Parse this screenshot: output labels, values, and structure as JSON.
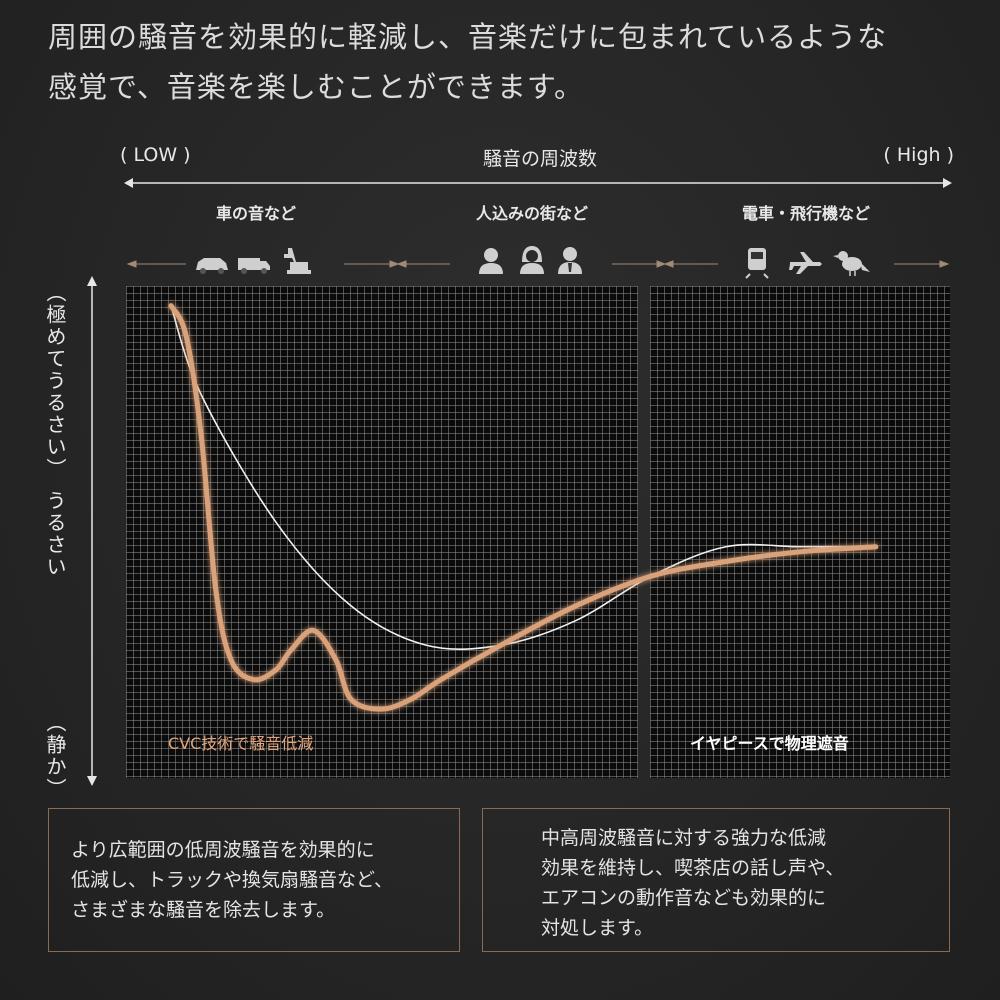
{
  "headline": {
    "line1": "周囲の騒音を効果的に軽減し、音楽だけに包まれているような",
    "line2": "感覚で、音楽を楽しむことができます。"
  },
  "x_axis": {
    "low": "( LOW )",
    "title": "騒音の周波数",
    "high": "( High )"
  },
  "categories": [
    {
      "label": "車の音など",
      "icons": [
        "car-icon",
        "truck-icon",
        "excavator-icon"
      ]
    },
    {
      "label": "人込みの街など",
      "icons": [
        "man-icon",
        "woman-icon",
        "businessman-icon"
      ]
    },
    {
      "label": "電車・飛行機など",
      "icons": [
        "train-icon",
        "airplane-icon",
        "bird-icon"
      ]
    }
  ],
  "y_axis": {
    "very_loud": "（極めてうるさい）",
    "loud": "うるさい",
    "quiet": "（静か）"
  },
  "chart_data": {
    "type": "line",
    "x_label": "騒音の周波数",
    "x_range_labels": [
      "( LOW )",
      "( High )"
    ],
    "y_labels": [
      "（極めてうるさい）",
      "うるさい",
      "（静か）"
    ],
    "x_range": [
      0,
      100
    ],
    "y_range": [
      0,
      100
    ],
    "grid": true,
    "colors": {
      "gold_curve": "#d9a27a",
      "white_curve": "#f2f2f2",
      "accent_text": "#e0a47c"
    },
    "series": [
      {
        "style": "white",
        "x": [
          6,
          10,
          20,
          30,
          40,
          50,
          60,
          70,
          80,
          90,
          100
        ],
        "y": [
          96,
          78,
          52,
          35,
          27,
          27,
          32,
          41,
          47,
          47,
          47
        ]
      },
      {
        "style": "gold",
        "x": [
          6,
          8,
          10,
          12,
          14,
          17,
          20,
          22,
          25,
          28,
          30,
          34,
          38,
          42,
          50,
          60,
          70,
          80,
          90,
          100
        ],
        "y": [
          96,
          90,
          70,
          38,
          24,
          20,
          22,
          26,
          30,
          24,
          16,
          14,
          16,
          20,
          27,
          35,
          41,
          44,
          46,
          47
        ]
      }
    ],
    "regions": [
      {
        "label": "CVC技術で騒音低減"
      },
      {
        "label": "イヤピースで物理遮音"
      }
    ]
  },
  "boxes": {
    "left": [
      "より広範囲の低周波騒音を効果的に",
      "低減し、トラックや換気扇騒音など、",
      "さまざまな騒音を除去します。"
    ],
    "right": [
      "中高周波騒音に対する強力な低減",
      "効果を維持し、喫茶店の話し声や、",
      "エアコンの動作音なども効果的に",
      "対処します。"
    ]
  }
}
